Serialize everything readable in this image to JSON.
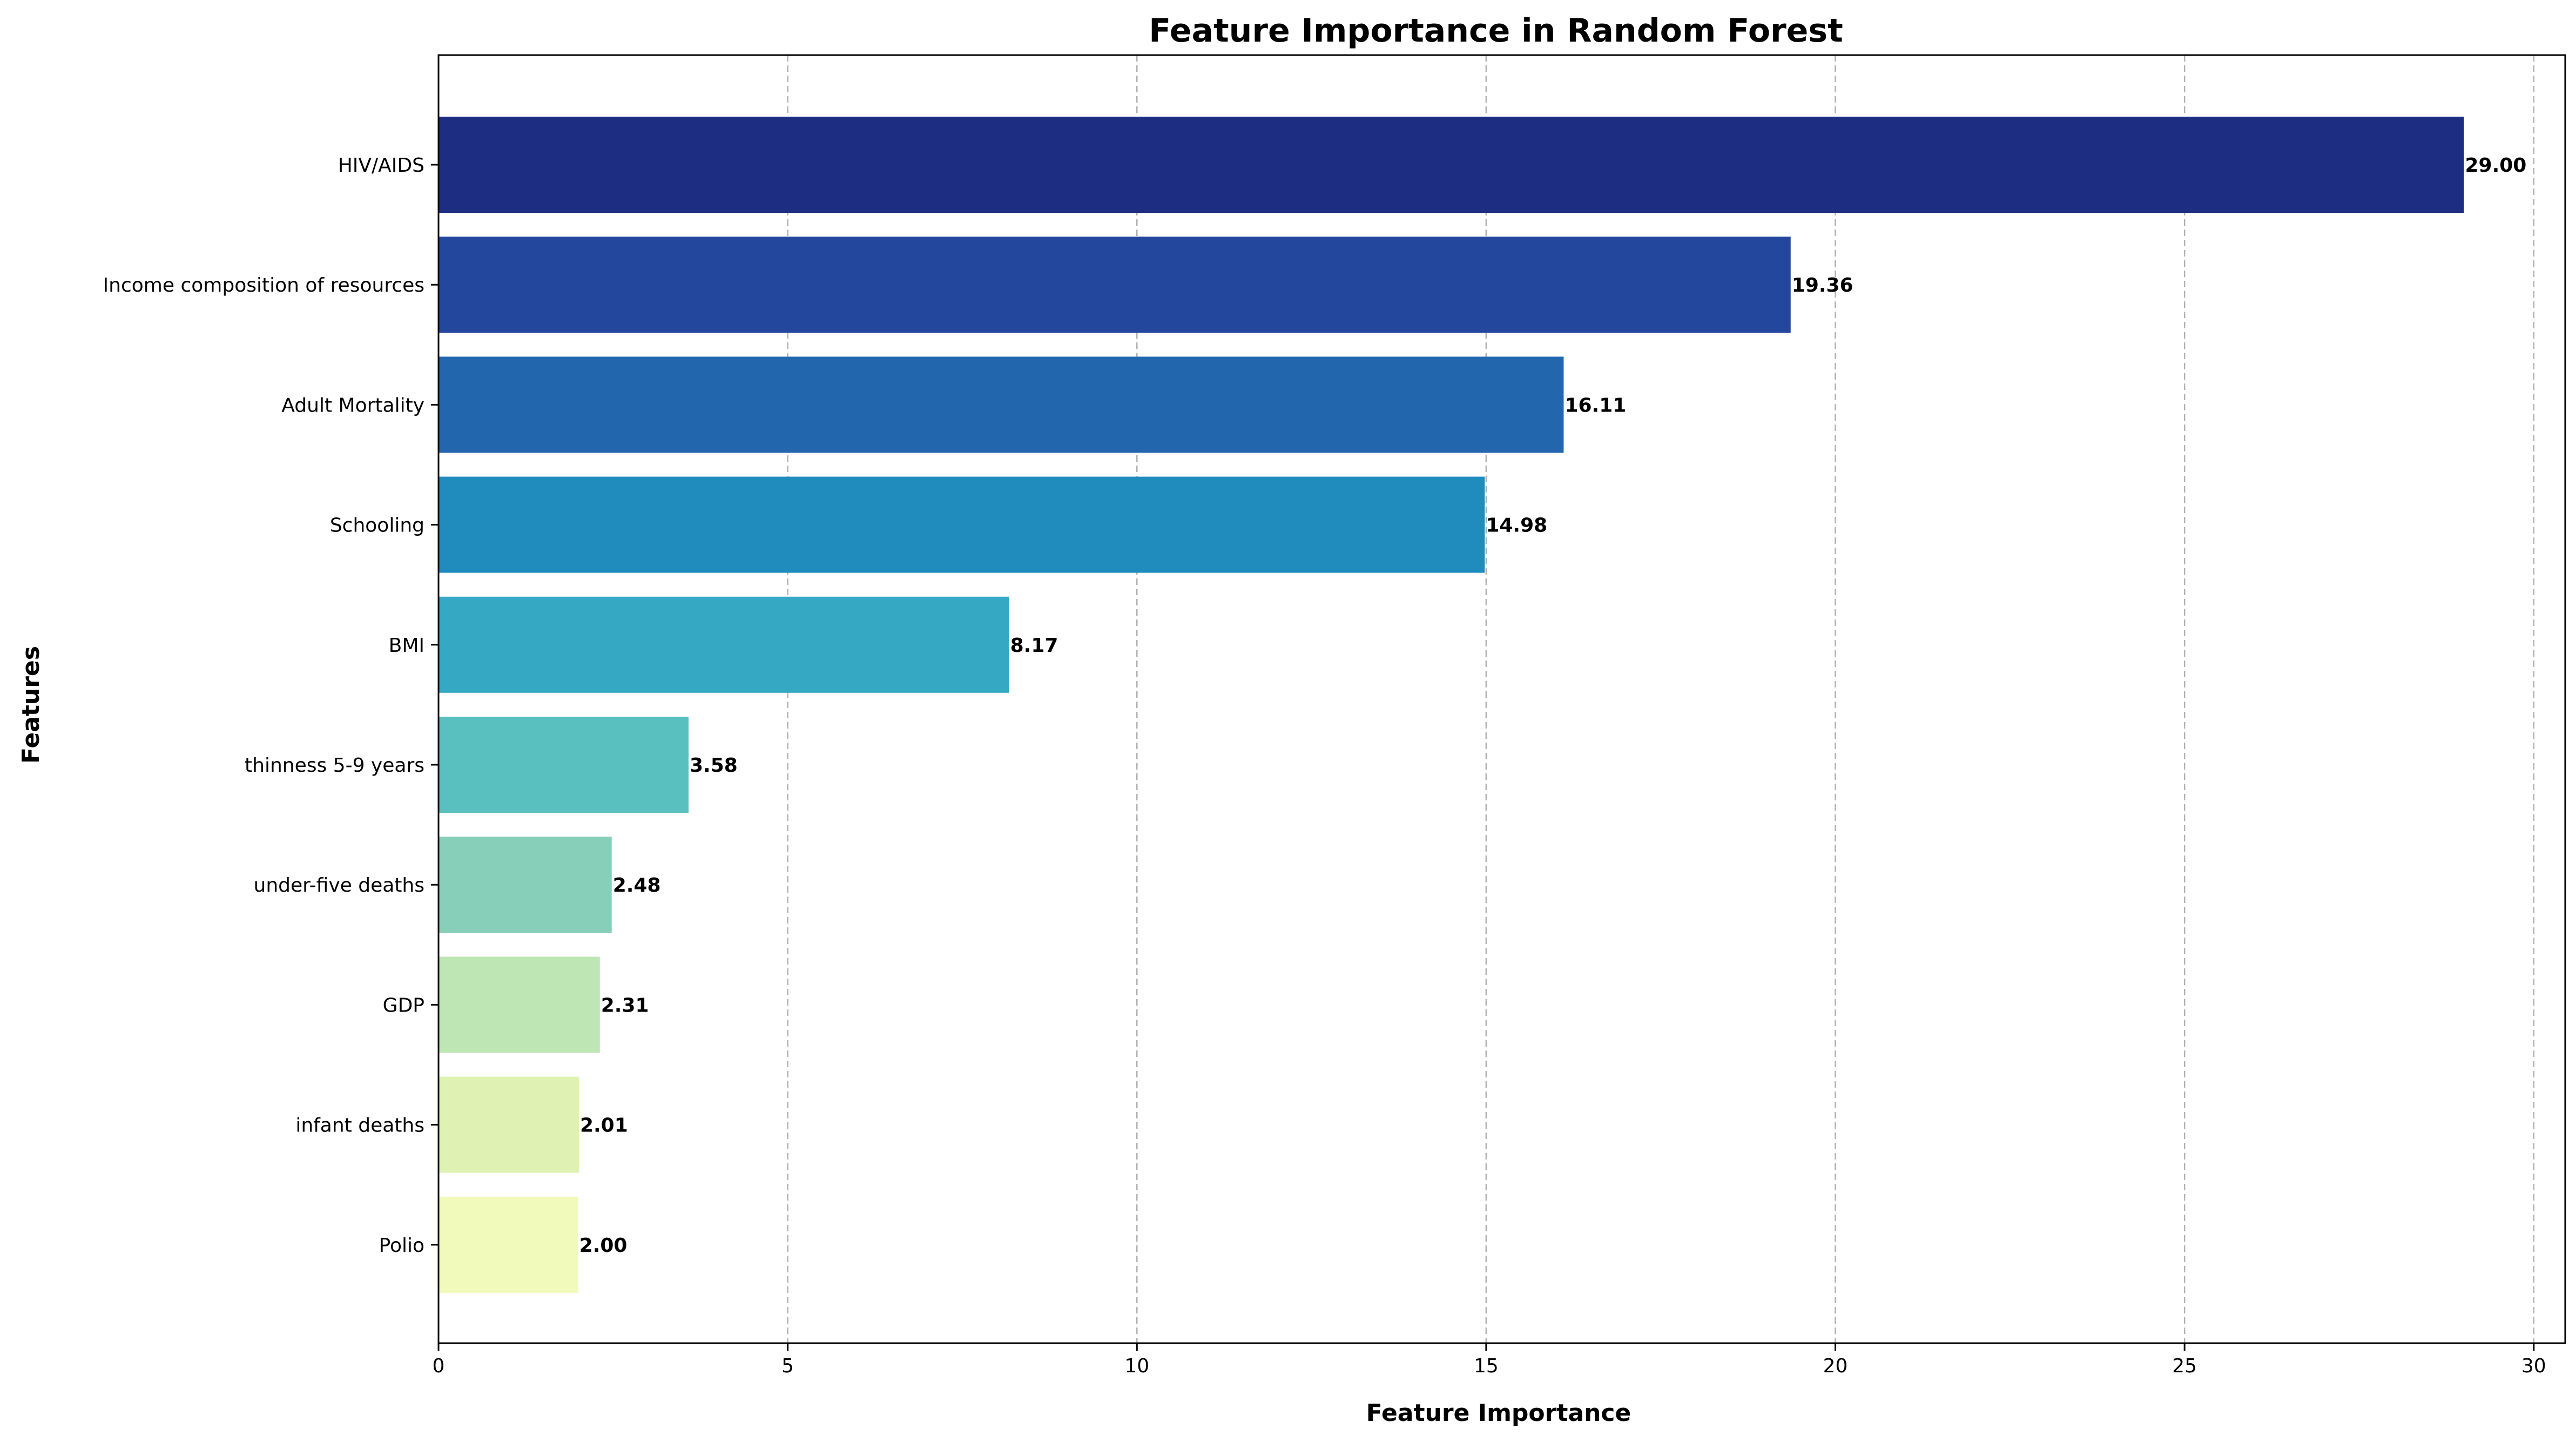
{
  "chart_data": {
    "type": "bar",
    "orientation": "horizontal",
    "title": "Feature Importance in Random Forest",
    "xlabel": "Feature Importance",
    "ylabel": "Features",
    "xlim": [
      0,
      30.45
    ],
    "xticks": [
      0,
      5,
      10,
      15,
      20,
      25,
      30
    ],
    "grid": "x-dashed",
    "categories": [
      "HIV/AIDS",
      "Income composition of resources",
      "Adult Mortality",
      "Schooling",
      "BMI",
      "thinness 5-9 years",
      "under-five deaths",
      "GDP",
      "infant deaths",
      "Polio"
    ],
    "values": [
      29.0,
      19.36,
      16.11,
      14.98,
      8.17,
      3.58,
      2.48,
      2.31,
      2.01,
      2.0
    ],
    "value_labels": [
      "29.00",
      "19.36",
      "16.11",
      "14.98",
      "8.17",
      "3.58",
      "2.48",
      "2.31",
      "2.01",
      "2.00"
    ],
    "colors": [
      "#1d2d82",
      "#24479e",
      "#2266ae",
      "#1f8cbd",
      "#35a9c3",
      "#5abfbf",
      "#88cfb9",
      "#bee5b4",
      "#dff2b3",
      "#f2fabb"
    ]
  }
}
